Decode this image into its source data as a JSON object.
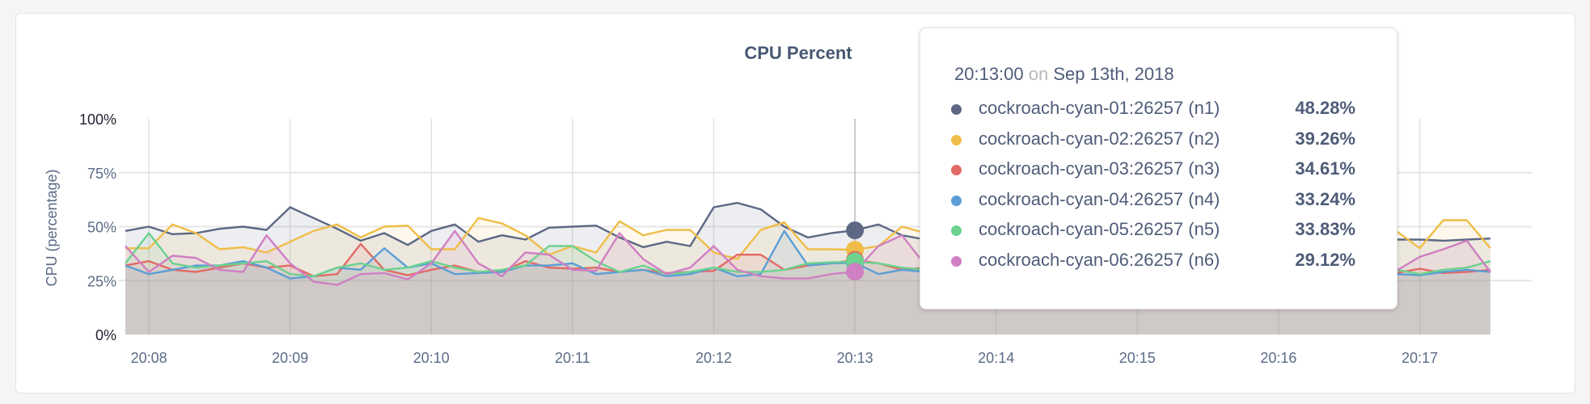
{
  "chart_data": {
    "type": "area",
    "title": "CPU Percent",
    "ylabel": "CPU (percentage)",
    "xlabel": "",
    "ylim": [
      0,
      100
    ],
    "yticks": [
      "0%",
      "25%",
      "50%",
      "75%",
      "100%"
    ],
    "ytick_values": [
      0,
      25,
      50,
      75,
      100
    ],
    "xticks": [
      "20:08",
      "20:09",
      "20:10",
      "20:11",
      "20:12",
      "20:13",
      "20:14",
      "20:15",
      "20:16",
      "20:17"
    ],
    "x_start": "20:07:50",
    "x_end": "20:17:30",
    "x_interval_seconds": 10,
    "grid": true,
    "series": [
      {
        "name": "cockroach-cyan-01:26257 (n1)",
        "color": "#5c6884",
        "values": [
          48,
          50,
          46.5,
          47,
          49,
          50,
          48.5,
          59,
          54,
          49,
          43.5,
          47,
          41.5,
          48,
          51,
          43,
          46,
          44,
          49.5,
          50,
          50.5,
          45,
          40.5,
          43,
          41,
          59,
          61,
          58,
          50,
          45,
          47,
          48.28,
          51,
          46,
          44,
          47,
          49,
          45,
          47,
          50,
          46,
          44,
          48,
          47,
          45,
          46,
          49,
          47,
          44,
          46,
          45,
          43,
          44,
          43,
          44,
          44,
          43.5,
          44,
          44.5
        ]
      },
      {
        "name": "cockroach-cyan-02:26257 (n2)",
        "color": "#efbd48",
        "values": [
          40,
          40,
          51,
          47,
          39.5,
          40.5,
          38,
          43,
          48,
          51,
          45,
          50,
          50.5,
          39.5,
          39.5,
          54,
          51.5,
          46,
          37,
          41,
          38,
          52.5,
          46,
          48.5,
          48.5,
          38,
          35,
          48.5,
          52,
          39.5,
          39.5,
          39.26,
          41,
          50,
          47,
          52,
          49,
          46,
          50,
          48,
          51,
          47,
          45,
          49,
          53,
          48,
          46,
          50,
          47,
          52,
          49,
          47,
          50,
          52,
          48,
          40,
          53,
          53,
          40
        ]
      },
      {
        "name": "cockroach-cyan-03:26257 (n3)",
        "color": "#e26a65",
        "values": [
          32,
          34,
          30,
          29,
          31,
          33,
          31,
          32,
          27,
          28,
          42,
          30,
          27.5,
          30,
          32,
          29,
          29,
          34,
          31,
          30.5,
          31,
          29,
          30,
          28.5,
          29,
          29.5,
          37,
          37,
          30,
          32,
          33,
          34.61,
          33,
          30,
          31,
          29,
          32,
          30,
          31,
          29,
          30,
          31,
          33,
          30,
          29,
          31,
          30,
          32,
          29,
          30,
          31,
          30,
          29,
          30,
          28.5,
          30.5,
          28.5,
          29,
          30
        ]
      },
      {
        "name": "cockroach-cyan-04:26257 (n4)",
        "color": "#5b9ed5",
        "values": [
          32,
          28,
          30,
          32,
          32,
          34,
          31,
          26,
          27,
          31,
          30,
          40,
          31,
          33,
          28,
          28.5,
          29,
          32,
          32,
          33,
          28,
          29,
          30,
          27,
          28,
          31,
          27,
          28,
          48,
          32,
          33,
          33.24,
          28,
          30,
          29,
          31,
          30,
          28,
          30,
          29,
          31,
          30,
          29,
          31,
          30,
          28,
          29,
          31,
          30,
          29,
          31,
          30,
          32,
          30,
          28,
          27.5,
          29,
          30,
          29
        ]
      },
      {
        "name": "cockroach-cyan-05:26257 (n5)",
        "color": "#6cd28e",
        "values": [
          33,
          47,
          33,
          31,
          32,
          33,
          34,
          28,
          27,
          31,
          33,
          30,
          31,
          34,
          31,
          29,
          30,
          32,
          41,
          41,
          34,
          29,
          32,
          28,
          29,
          31,
          29,
          29,
          30,
          33,
          33.5,
          33.83,
          33,
          31,
          30,
          32,
          31,
          30,
          29,
          31,
          30,
          32,
          31,
          33,
          30,
          31,
          29,
          30,
          31,
          33,
          31,
          32,
          38,
          34,
          30,
          28,
          30,
          31,
          34
        ]
      },
      {
        "name": "cockroach-cyan-06:26257 (n6)",
        "color": "#cf7fc3",
        "values": [
          41,
          29,
          36.5,
          35.5,
          30,
          29,
          46,
          33,
          24.5,
          23,
          28,
          28.5,
          25.5,
          33,
          48,
          33,
          27,
          38,
          37,
          30,
          29.5,
          47,
          35,
          28,
          31,
          41,
          30,
          27,
          26,
          26,
          28,
          29.12,
          41,
          46,
          32,
          30,
          29,
          33,
          31,
          30,
          32,
          30,
          34,
          29,
          31,
          30,
          32,
          28,
          31,
          29,
          30,
          29,
          28,
          29,
          29.5,
          36,
          39.5,
          43.5,
          29
        ]
      }
    ],
    "hover_index": 31
  },
  "tooltip": {
    "time": "20:13:00",
    "on": "on",
    "date": "Sep 13th, 2018",
    "rows": [
      {
        "name": "cockroach-cyan-01:26257 (n1)",
        "value": "48.28%",
        "color": "#5c6884"
      },
      {
        "name": "cockroach-cyan-02:26257 (n2)",
        "value": "39.26%",
        "color": "#efbd48"
      },
      {
        "name": "cockroach-cyan-03:26257 (n3)",
        "value": "34.61%",
        "color": "#e26a65"
      },
      {
        "name": "cockroach-cyan-04:26257 (n4)",
        "value": "33.24%",
        "color": "#5b9ed5"
      },
      {
        "name": "cockroach-cyan-05:26257 (n5)",
        "value": "33.83%",
        "color": "#6cd28e"
      },
      {
        "name": "cockroach-cyan-06:26257 (n6)",
        "value": "29.12%",
        "color": "#cf7fc3"
      }
    ]
  }
}
